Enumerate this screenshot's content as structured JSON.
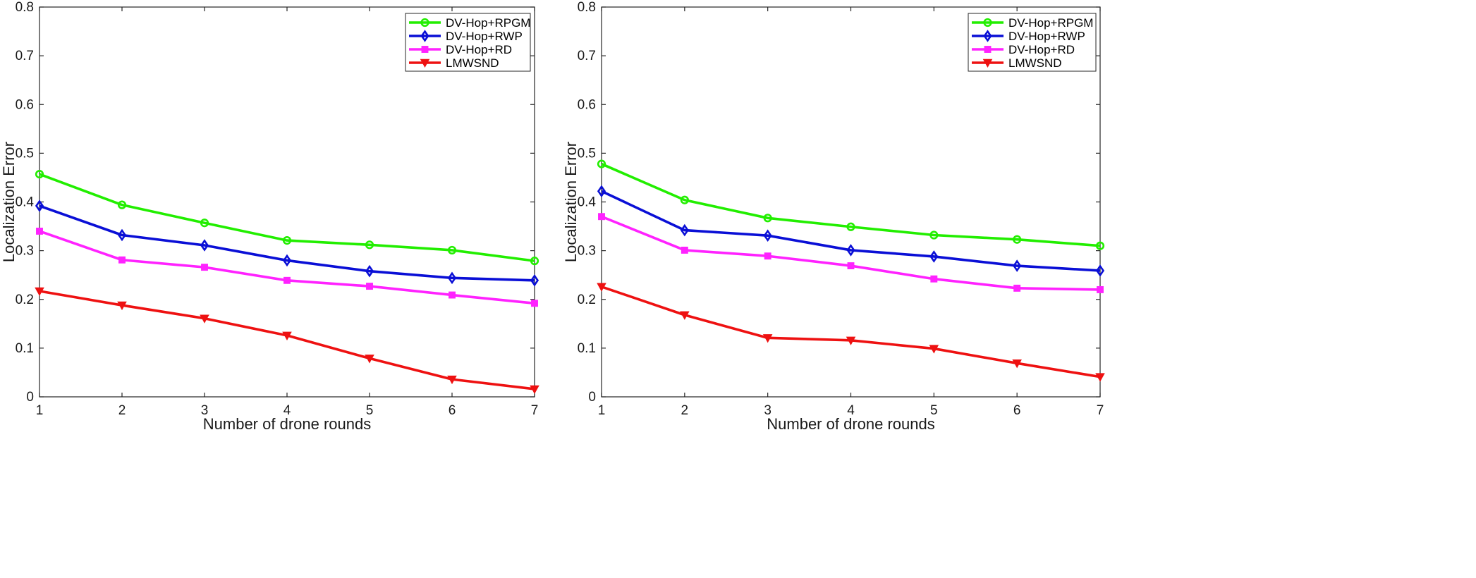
{
  "chart_data": [
    {
      "type": "line",
      "title": "",
      "xlabel": "Number of drone rounds",
      "ylabel": "Localization Error",
      "xlim": [
        1,
        7
      ],
      "ylim": [
        0,
        0.8
      ],
      "x": [
        1,
        2,
        3,
        4,
        5,
        6,
        7
      ],
      "xticks": [
        "1",
        "2",
        "3",
        "4",
        "5",
        "6",
        "7"
      ],
      "yticks": [
        "0",
        "0.1",
        "0.2",
        "0.3",
        "0.4",
        "0.5",
        "0.6",
        "0.7",
        "0.8"
      ],
      "grid": false,
      "legend_position": "top-right",
      "series": [
        {
          "name": "DV-Hop+RPGM",
          "color": "#22ee00",
          "marker": "circle",
          "values": [
            0.457,
            0.394,
            0.357,
            0.321,
            0.312,
            0.301,
            0.279
          ]
        },
        {
          "name": "DV-Hop+RWP",
          "color": "#0a0fd6",
          "marker": "diamond",
          "values": [
            0.392,
            0.332,
            0.311,
            0.28,
            0.258,
            0.244,
            0.239
          ]
        },
        {
          "name": "DV-Hop+RD",
          "color": "#ff22ff",
          "marker": "square",
          "values": [
            0.34,
            0.281,
            0.266,
            0.239,
            0.227,
            0.209,
            0.192
          ]
        },
        {
          "name": "LMWSND",
          "color": "#ee1111",
          "marker": "triangle-down",
          "values": [
            0.217,
            0.188,
            0.161,
            0.126,
            0.079,
            0.036,
            0.016
          ]
        }
      ]
    },
    {
      "type": "line",
      "title": "",
      "xlabel": "Number of drone rounds",
      "ylabel": "Localization Error",
      "xlim": [
        1,
        7
      ],
      "ylim": [
        0,
        0.8
      ],
      "x": [
        1,
        2,
        3,
        4,
        5,
        6,
        7
      ],
      "xticks": [
        "1",
        "2",
        "3",
        "4",
        "5",
        "6",
        "7"
      ],
      "yticks": [
        "0",
        "0.1",
        "0.2",
        "0.3",
        "0.4",
        "0.5",
        "0.6",
        "0.7",
        "0.8"
      ],
      "grid": false,
      "legend_position": "top-right",
      "series": [
        {
          "name": "DV-Hop+RPGM",
          "color": "#22ee00",
          "marker": "circle",
          "values": [
            0.478,
            0.404,
            0.367,
            0.349,
            0.332,
            0.323,
            0.31
          ]
        },
        {
          "name": "DV-Hop+RWP",
          "color": "#0a0fd6",
          "marker": "diamond",
          "values": [
            0.422,
            0.342,
            0.331,
            0.301,
            0.288,
            0.269,
            0.259
          ]
        },
        {
          "name": "DV-Hop+RD",
          "color": "#ff22ff",
          "marker": "square",
          "values": [
            0.37,
            0.301,
            0.289,
            0.269,
            0.242,
            0.223,
            0.22
          ]
        },
        {
          "name": "LMWSND",
          "color": "#ee1111",
          "marker": "triangle-down",
          "values": [
            0.226,
            0.168,
            0.121,
            0.116,
            0.099,
            0.069,
            0.041
          ]
        }
      ]
    }
  ]
}
